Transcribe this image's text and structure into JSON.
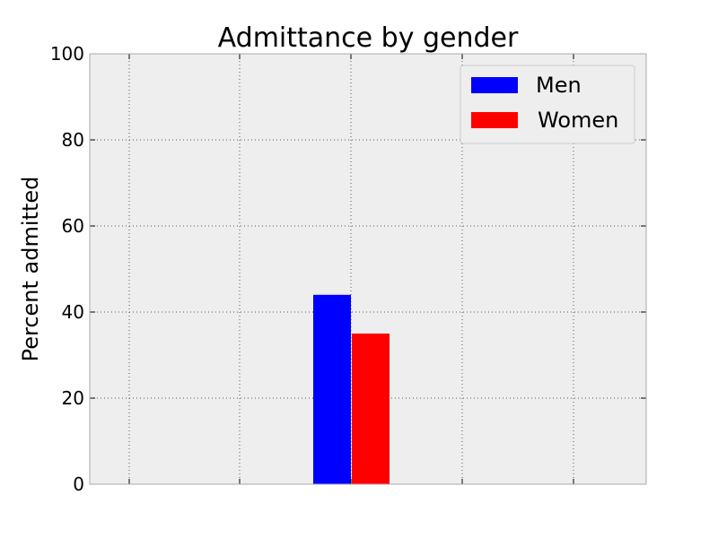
{
  "chart_data": {
    "type": "bar",
    "title": "Admittance by gender",
    "xlabel": "",
    "ylabel": "Percent admitted",
    "ylim": [
      0,
      100
    ],
    "yticks": [
      0,
      20,
      40,
      60,
      80,
      100
    ],
    "grid": true,
    "legend_position": "top-right",
    "series": [
      {
        "name": "Men",
        "color": "#0000ff",
        "values": [
          44
        ]
      },
      {
        "name": "Women",
        "color": "#ff0000",
        "values": [
          35
        ]
      }
    ]
  },
  "colors": {
    "plot_background": "#eeeeee",
    "frame": "#aaaaaa"
  }
}
